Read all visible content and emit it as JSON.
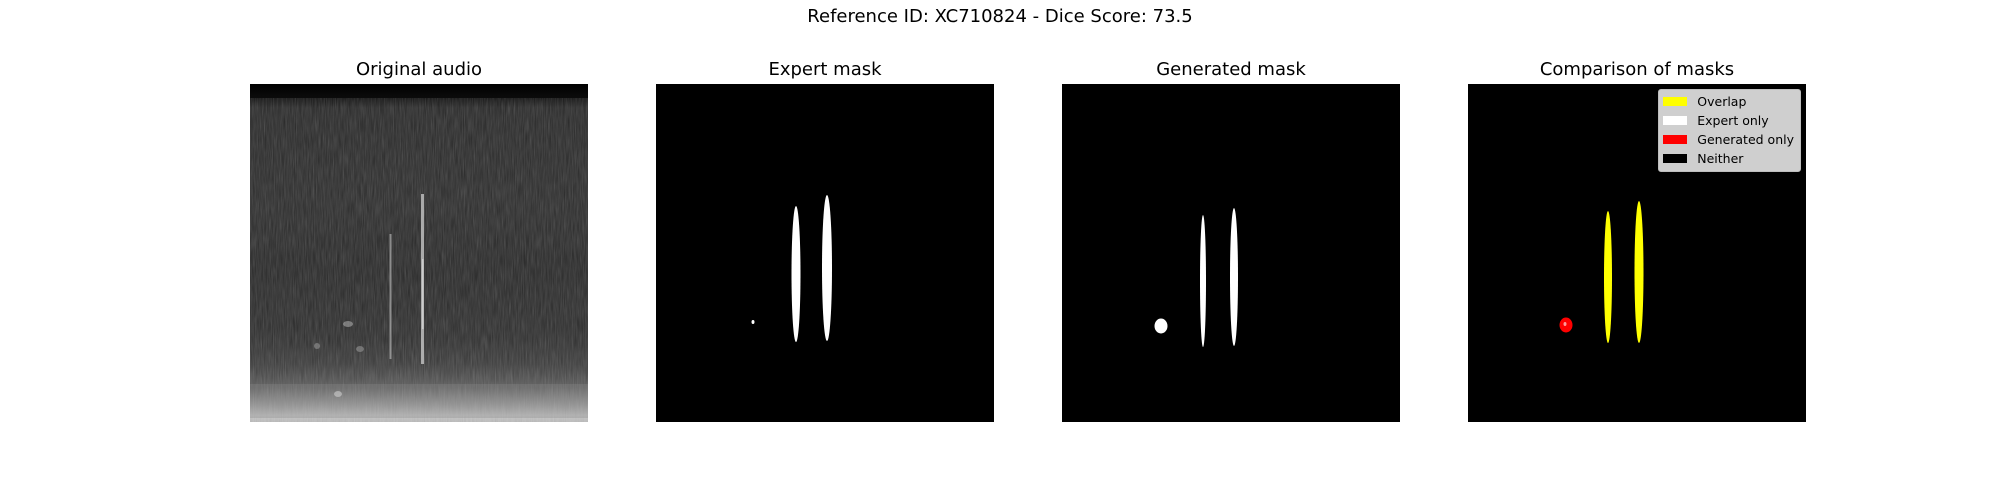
{
  "figure": {
    "suptitle": "Reference ID: XC710824 - Dice Score: 73.5"
  },
  "panels": [
    {
      "title": "Original audio"
    },
    {
      "title": "Expert mask"
    },
    {
      "title": "Generated mask"
    },
    {
      "title": "Comparison of masks"
    }
  ],
  "legend": {
    "items": [
      {
        "label": "Overlap",
        "color": "#ffff00"
      },
      {
        "label": "Expert only",
        "color": "#ffffff"
      },
      {
        "label": "Generated only",
        "color": "#ff0000"
      },
      {
        "label": "Neither",
        "color": "#000000"
      }
    ]
  }
}
